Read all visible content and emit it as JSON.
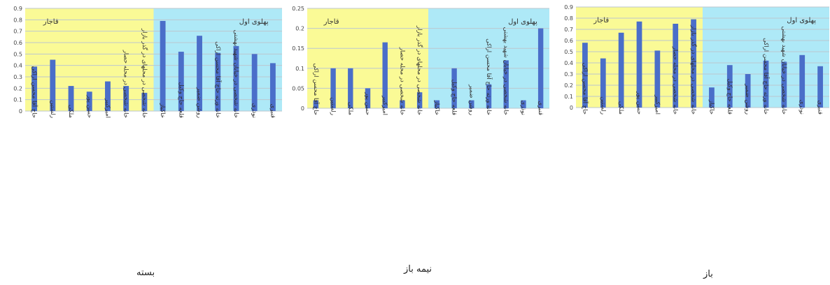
{
  "figure": {
    "captions": [
      "بسته",
      "نیمه باز",
      "باز"
    ]
  },
  "colors": {
    "qajar_band": "#fafa96",
    "pahlavi_band": "#aee9f7",
    "bar": "#4a6ec9",
    "grid": "#bcc7cf",
    "axis_text": "#444444"
  },
  "chart_data": [
    {
      "type": "bar",
      "title": "بسته",
      "ylim": [
        0,
        0.9
      ],
      "yticks": [
        0,
        0.1,
        0.2,
        0.3,
        0.4,
        0.5,
        0.6,
        0.7,
        0.8,
        0.9
      ],
      "grid": true,
      "regions": [
        {
          "label": "قاجار",
          "start": 0,
          "end": 6,
          "color": "#fafa96"
        },
        {
          "label": "پهلوی اول",
          "start": 7,
          "end": 13,
          "color": "#aee9f7"
        }
      ],
      "categories": [
        "حاج آقا محسن اراکی",
        "رلستین",
        "ملکی",
        "حسن پور",
        "امیرکبیر",
        "خانه شخصی در محله حصار",
        "خانه شخصی در محلهای در گذر بازار",
        "خاکباز",
        "قلعه حاج وکیل",
        "روشن ضمیر",
        "خانه ورثه حاج آقا محسن اراکی",
        "خانه شخصی در خیابان شهید بهشتی",
        "نوذری",
        "قنبری"
      ],
      "values": [
        0.39,
        0.45,
        0.22,
        0.17,
        0.26,
        0.22,
        0.16,
        0.79,
        0.52,
        0.66,
        0.51,
        0.57,
        0.5,
        0.42
      ]
    },
    {
      "type": "bar",
      "title": "نیمه باز",
      "ylim": [
        0,
        0.25
      ],
      "yticks": [
        0,
        0.05,
        0.1,
        0.15,
        0.2,
        0.25
      ],
      "grid": true,
      "regions": [
        {
          "label": "قاجار",
          "start": 0,
          "end": 6,
          "color": "#fafa96"
        },
        {
          "label": "پهلوی اول",
          "start": 7,
          "end": 13,
          "color": "#aee9f7"
        }
      ],
      "categories": [
        "حاج آقا محسن اراکی",
        "رلستین",
        "ملکی",
        "حسن پور",
        "امیرکبیر",
        "خانه شخصی در محله حصار",
        "خانه شخصی در محلهای در گذر بازار",
        "خاکباز",
        "قلعه حاج وکیل",
        "روشن ضمیر",
        "خانه ورثه حاج آقا محسن اراکی",
        "خانه شخصی در خیابان شهید بهشتی",
        "نوذری",
        "قنبری"
      ],
      "values": [
        0.02,
        0.1,
        0.1,
        0.05,
        0.165,
        0.02,
        0.04,
        0.02,
        0.1,
        0.02,
        0.06,
        0.12,
        0.02,
        0.2
      ]
    },
    {
      "type": "bar",
      "title": "باز",
      "ylim": [
        0,
        0.9
      ],
      "yticks": [
        0,
        0.1,
        0.2,
        0.3,
        0.4,
        0.5,
        0.6,
        0.7,
        0.8,
        0.9
      ],
      "grid": true,
      "regions": [
        {
          "label": "قاجار",
          "start": 0,
          "end": 6,
          "color": "#fafa96"
        },
        {
          "label": "پهلوی اول",
          "start": 7,
          "end": 13,
          "color": "#aee9f7"
        }
      ],
      "categories": [
        "حاج آقا محسن اراکی",
        "رلستین",
        "ملکی",
        "حسن پور",
        "امیرکبیر",
        "خانه شخصی در محله حصار",
        "خانه شخصی در محلهای در گذر بازار",
        "خاکباز",
        "قلعه حاج وکیل",
        "روشن ضمیر",
        "خانه ورثه حاج آقا محسن اراکی",
        "خانه شخصی در خیابان شهید بهشتی",
        "نوذری",
        "قنبری"
      ],
      "values": [
        0.58,
        0.44,
        0.67,
        0.77,
        0.51,
        0.75,
        0.79,
        0.18,
        0.38,
        0.3,
        0.42,
        0.41,
        0.47,
        0.37
      ]
    }
  ]
}
